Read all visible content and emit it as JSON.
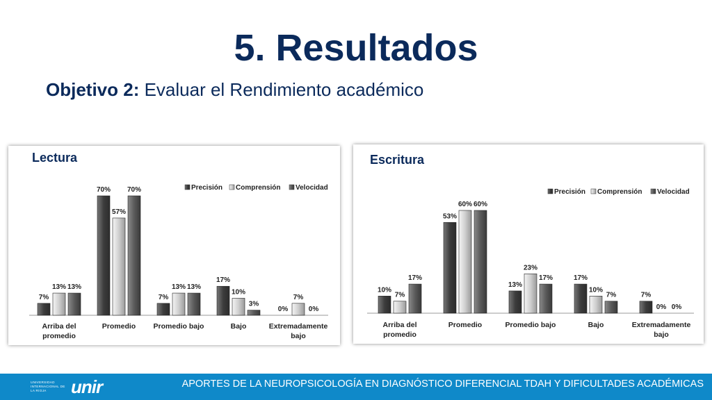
{
  "slide": {
    "title": "5. Resultados",
    "subtitle_bold": "Objetivo 2:",
    "subtitle_rest": " Evaluar el Rendimiento académico"
  },
  "footer": {
    "text": "APORTES DE LA NEUROPSICOLOGÍA EN DIAGNÓSTICO DIFERENCIAL TDAH Y DIFICULTADES ACADÉMICAS",
    "logo_small": "UNIVERSIDAD INTERNACIONAL DE LA RIOJA",
    "logo_big": "unir",
    "bar_color": "#0f89c9"
  },
  "colors": {
    "title": "#0b2a5b",
    "series": [
      "#3d3d3d",
      "#cfcfcf",
      "#5a5a5a"
    ]
  },
  "chart_data": [
    {
      "type": "bar",
      "title": "Lectura",
      "legend_position": "top-right",
      "categories": [
        [
          "Arriba del",
          "promedio"
        ],
        [
          "Promedio"
        ],
        [
          "Promedio bajo"
        ],
        [
          "Bajo"
        ],
        [
          "Extremadamente",
          "bajo"
        ]
      ],
      "series": [
        {
          "name": "Precisión",
          "values": [
            7,
            70,
            7,
            17,
            0
          ]
        },
        {
          "name": "Comprensión",
          "values": [
            13,
            57,
            13,
            10,
            7
          ]
        },
        {
          "name": "Velocidad",
          "values": [
            13,
            70,
            13,
            3,
            0
          ]
        }
      ],
      "value_suffix": "%",
      "ylim": [
        0,
        70
      ],
      "grid": false
    },
    {
      "type": "bar",
      "title": "Escritura",
      "legend_position": "top-right",
      "categories": [
        [
          "Arriba del",
          "promedio"
        ],
        [
          "Promedio"
        ],
        [
          "Promedio bajo"
        ],
        [
          "Bajo"
        ],
        [
          "Extremadamente",
          "bajo"
        ]
      ],
      "series": [
        {
          "name": "Precisión",
          "values": [
            10,
            53,
            13,
            17,
            7
          ]
        },
        {
          "name": "Comprensión",
          "values": [
            7,
            60,
            23,
            10,
            0
          ]
        },
        {
          "name": "Velocidad",
          "values": [
            17,
            60,
            17,
            7,
            0
          ]
        }
      ],
      "value_suffix": "%",
      "ylim": [
        0,
        60
      ],
      "grid": false
    }
  ]
}
